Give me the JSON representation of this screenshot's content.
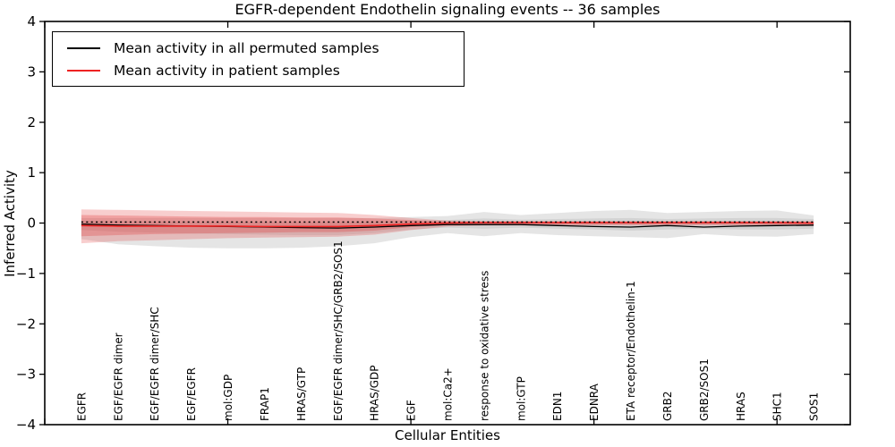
{
  "chart_data": {
    "type": "line",
    "title": "EGFR-dependent Endothelin signaling events -- 36 samples",
    "xlabel": "Cellular Entities",
    "ylabel": "Inferred Activity",
    "ylim": [
      -4,
      4
    ],
    "xlim": [
      0,
      22
    ],
    "grid": false,
    "ytick_labels": [
      "4",
      "3",
      "2",
      "1",
      "0",
      "−1",
      "−2",
      "−3",
      "−4"
    ],
    "ytick_values": [
      4,
      3,
      2,
      1,
      0,
      -1,
      -2,
      -3,
      -4
    ],
    "xtick_values": [
      0,
      5,
      10,
      15,
      20
    ],
    "categories": [
      "EGFR",
      "EGF/EGFR dimer",
      "EGF/EGFR dimer/SHC",
      "EGF/EGFR",
      "mol:GDP",
      "FRAP1",
      "HRAS/GTP",
      "EGF/EGFR dimer/SHC/GRB2/SOS1",
      "HRAS/GDP",
      "EGF",
      "mol:Ca2+",
      "response to oxidative stress",
      "mol:GTP",
      "EDN1",
      "EDNRA",
      "ETA receptor/Endothelin-1",
      "GRB2",
      "GRB2/SOS1",
      "HRAS",
      "SHC1",
      "SOS1"
    ],
    "legend": {
      "position": "upper left",
      "items": [
        {
          "label": "Mean activity in all permuted samples",
          "color": "#000000"
        },
        {
          "label": "Mean activity in patient samples",
          "color": "#ee2222"
        }
      ]
    },
    "series": [
      {
        "name": "permuted_mean",
        "style": "solid",
        "color": "#000000",
        "width": 1.3,
        "values": [
          -0.02,
          -0.04,
          -0.05,
          -0.06,
          -0.07,
          -0.08,
          -0.09,
          -0.1,
          -0.08,
          -0.05,
          -0.03,
          -0.03,
          -0.03,
          -0.05,
          -0.07,
          -0.08,
          -0.05,
          -0.08,
          -0.06,
          -0.05,
          -0.04
        ]
      },
      {
        "name": "patient_mean",
        "style": "solid",
        "color": "#ee2222",
        "width": 1.6,
        "values": [
          -0.05,
          -0.06,
          -0.06,
          -0.06,
          -0.06,
          -0.07,
          -0.07,
          -0.07,
          -0.05,
          -0.02,
          0.0,
          0.01,
          0.01,
          0.01,
          0.01,
          0.01,
          0.01,
          0.01,
          0.01,
          0.01,
          0.0
        ]
      }
    ],
    "reference_line": {
      "name": "zero_dotted",
      "style": "dotted",
      "color": "#000000",
      "value": 0.02
    },
    "bands": [
      {
        "name": "permuted_band_outer",
        "color": "rgba(0,0,0,0.10)",
        "upper": [
          0.1,
          0.1,
          0.1,
          0.1,
          0.1,
          0.1,
          0.1,
          0.1,
          0.1,
          0.12,
          0.14,
          0.22,
          0.16,
          0.2,
          0.24,
          0.26,
          0.2,
          0.22,
          0.24,
          0.25,
          0.15
        ],
        "lower": [
          -0.32,
          -0.42,
          -0.46,
          -0.49,
          -0.5,
          -0.5,
          -0.49,
          -0.46,
          -0.4,
          -0.28,
          -0.2,
          -0.26,
          -0.2,
          -0.24,
          -0.26,
          -0.28,
          -0.3,
          -0.22,
          -0.26,
          -0.27,
          -0.22
        ]
      },
      {
        "name": "permuted_band_inner",
        "color": "rgba(0,0,0,0.08)",
        "upper": [
          0.04,
          0.04,
          0.03,
          0.03,
          0.03,
          0.02,
          0.02,
          0.02,
          0.03,
          0.05,
          0.06,
          0.09,
          0.07,
          0.08,
          0.09,
          0.1,
          0.08,
          0.09,
          0.1,
          0.1,
          0.08
        ],
        "lower": [
          -0.14,
          -0.17,
          -0.19,
          -0.21,
          -0.22,
          -0.23,
          -0.24,
          -0.24,
          -0.2,
          -0.13,
          -0.09,
          -0.11,
          -0.09,
          -0.11,
          -0.13,
          -0.15,
          -0.13,
          -0.11,
          -0.13,
          -0.13,
          -0.11
        ]
      },
      {
        "name": "patient_band_outer",
        "color": "rgba(226,61,61,0.25)",
        "upper": [
          0.27,
          0.26,
          0.25,
          0.24,
          0.23,
          0.22,
          0.21,
          0.2,
          0.16,
          0.1,
          0.05,
          0.04,
          0.04,
          0.04,
          0.04,
          0.04,
          0.04,
          0.04,
          0.04,
          0.04,
          0.04
        ],
        "lower": [
          -0.4,
          -0.36,
          -0.34,
          -0.32,
          -0.3,
          -0.29,
          -0.28,
          -0.27,
          -0.23,
          -0.14,
          -0.07,
          -0.05,
          -0.05,
          -0.05,
          -0.05,
          -0.05,
          -0.05,
          -0.05,
          -0.05,
          -0.05,
          -0.06
        ]
      },
      {
        "name": "patient_band_inner",
        "color": "rgba(226,61,61,0.30)",
        "upper": [
          0.16,
          0.15,
          0.14,
          0.13,
          0.12,
          0.12,
          0.11,
          0.11,
          0.09,
          0.06,
          0.03,
          0.02,
          0.02,
          0.02,
          0.02,
          0.02,
          0.02,
          0.02,
          0.02,
          0.02,
          0.02
        ],
        "lower": [
          -0.26,
          -0.24,
          -0.22,
          -0.21,
          -0.2,
          -0.19,
          -0.18,
          -0.18,
          -0.15,
          -0.08,
          -0.04,
          -0.03,
          -0.03,
          -0.03,
          -0.03,
          -0.03,
          -0.03,
          -0.03,
          -0.03,
          -0.03,
          -0.04
        ]
      }
    ]
  }
}
